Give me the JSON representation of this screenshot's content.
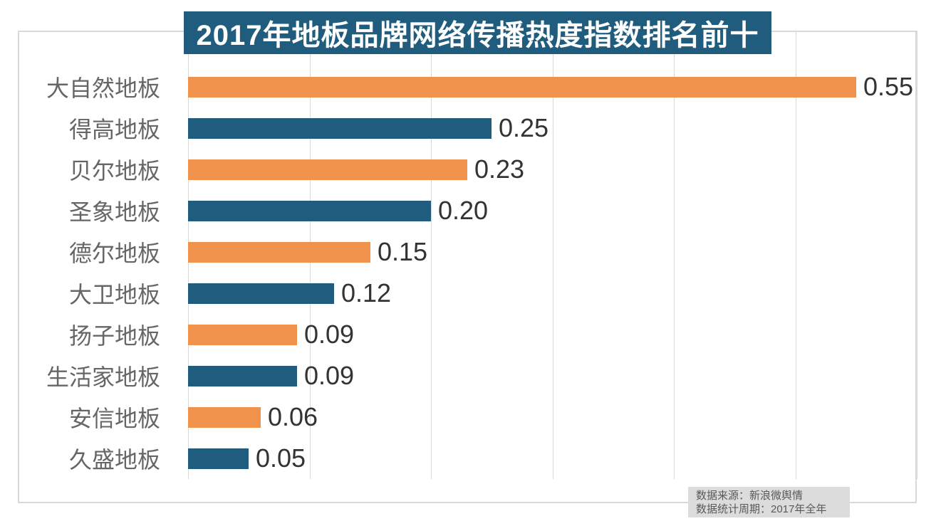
{
  "chart_data": {
    "type": "bar",
    "orientation": "horizontal",
    "title": "2017年地板品牌网络传播热度指数排名前十",
    "categories": [
      "大自然地板",
      "得高地板",
      "贝尔地板",
      "圣象地板",
      "德尔地板",
      "大卫地板",
      "扬子地板",
      "生活家地板",
      "安信地板",
      "久盛地板"
    ],
    "values": [
      0.55,
      0.25,
      0.23,
      0.2,
      0.15,
      0.12,
      0.09,
      0.09,
      0.06,
      0.05
    ],
    "value_labels": [
      "0.55",
      "0.25",
      "0.23",
      "0.20",
      "0.15",
      "0.12",
      "0.09",
      "0.09",
      "0.06",
      "0.05"
    ],
    "xlabel": "",
    "ylabel": "",
    "xlim": [
      0,
      0.6
    ],
    "gridline_step": 0.1,
    "grid": "vertical-only",
    "legend": "none",
    "bar_colors_alternating": [
      "#F0914C",
      "#1F5C7D"
    ]
  },
  "footer": {
    "source": "数据来源：新浪微舆情",
    "period": "数据统计周期：2017年全年"
  },
  "colors": {
    "title_bg": "#1F5C7D",
    "title_text": "#FFFFFF",
    "bar_orange": "#F0914C",
    "bar_teal": "#1F5C7D",
    "gridline": "#D9D9D9",
    "border": "#D9D9D9",
    "category_text": "#666666",
    "value_text": "#333333",
    "footer_bg": "#DCDCDC",
    "footer_text": "#595959"
  }
}
